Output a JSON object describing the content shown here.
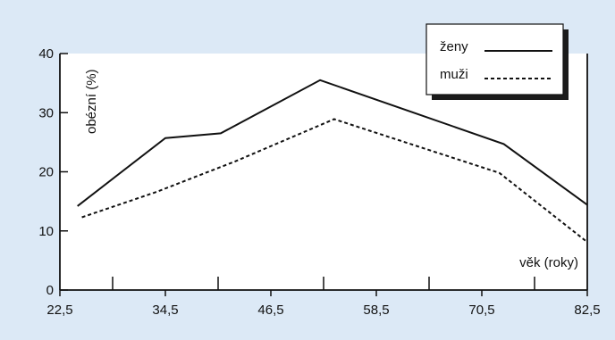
{
  "colors": {
    "panel_background": "#dce9f6",
    "line": "#111111",
    "legend_shadow": "#1b1b1b"
  },
  "chart_data": {
    "type": "line",
    "title": "",
    "xlabel": "věk  (roky)",
    "ylabel": "obézní (%)",
    "xlim": [
      22.5,
      82.5
    ],
    "ylim": [
      0,
      40
    ],
    "x_ticks": [
      22.5,
      34.5,
      46.5,
      58.5,
      70.5,
      82.5
    ],
    "x_tick_labels": [
      "22,5",
      "34,5",
      "46,5",
      "58,5",
      "70,5",
      "82,5"
    ],
    "x_minor_ticks": [
      28.5,
      40.5,
      52.5,
      64.5,
      76.5
    ],
    "y_ticks": [
      0,
      10,
      20,
      30,
      40
    ],
    "y_tick_labels": [
      "0",
      "10",
      "20",
      "30",
      "40"
    ],
    "grid": false,
    "legend_position": "top-right",
    "series": [
      {
        "name": "ženy",
        "style": "solid",
        "x": [
          24.5,
          34.5,
          40.8,
          52.1,
          73.0,
          82.5
        ],
        "y": [
          14.2,
          25.7,
          26.5,
          35.5,
          24.7,
          14.4
        ]
      },
      {
        "name": "muži",
        "style": "dashed",
        "x": [
          25.0,
          33.5,
          42.5,
          53.7,
          72.5,
          82.5
        ],
        "y": [
          12.3,
          16.6,
          21.8,
          28.9,
          19.8,
          8.1
        ]
      }
    ]
  }
}
